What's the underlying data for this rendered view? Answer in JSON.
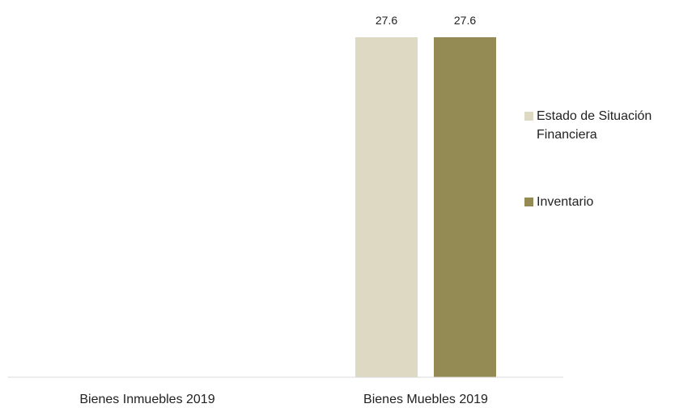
{
  "chart_data": {
    "type": "bar",
    "title": "",
    "xlabel": "",
    "ylabel": "",
    "categories": [
      "Bienes Inmuebles 2019",
      "Bienes Muebles 2019"
    ],
    "series": [
      {
        "name": "Estado de Situación Financiera",
        "values": [
          0,
          27.6
        ],
        "value_labels": [
          "",
          "27.6"
        ],
        "color": "#ddd9c3"
      },
      {
        "name": "Inventario",
        "values": [
          0,
          27.6
        ],
        "value_labels": [
          "",
          "27.6"
        ],
        "color": "#948a54"
      }
    ],
    "ylim": [
      0,
      27.6
    ],
    "y_axis_visible": false,
    "grid": false,
    "legend_position": "right",
    "axis_line_color": "#d9d9d9"
  }
}
